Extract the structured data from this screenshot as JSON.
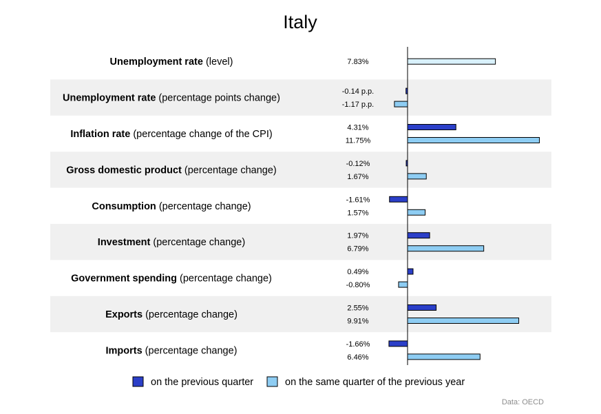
{
  "chart_data": {
    "type": "bar",
    "orientation": "horizontal",
    "title": "Italy",
    "rows": [
      {
        "name": "Unemployment rate",
        "qualifier": "(level)",
        "values": [
          null,
          7.83
        ],
        "labels": [
          "",
          "7.83%"
        ]
      },
      {
        "name": "Unemployment rate",
        "qualifier": "(percentage points change)",
        "values": [
          -0.14,
          -1.17
        ],
        "labels": [
          "-0.14 p.p.",
          "-1.17 p.p."
        ]
      },
      {
        "name": "Inflation rate",
        "qualifier": "(percentage change of the CPI)",
        "values": [
          4.31,
          11.75
        ],
        "labels": [
          "4.31%",
          "11.75%"
        ]
      },
      {
        "name": "Gross domestic product",
        "qualifier": "(percentage change)",
        "values": [
          -0.12,
          1.67
        ],
        "labels": [
          "-0.12%",
          "1.67%"
        ]
      },
      {
        "name": "Consumption",
        "qualifier": "(percentage change)",
        "values": [
          -1.61,
          1.57
        ],
        "labels": [
          "-1.61%",
          "1.57%"
        ]
      },
      {
        "name": "Investment",
        "qualifier": "(percentage change)",
        "values": [
          1.97,
          6.79
        ],
        "labels": [
          "1.97%",
          "6.79%"
        ]
      },
      {
        "name": "Government spending",
        "qualifier": "(percentage change)",
        "values": [
          0.49,
          -0.8
        ],
        "labels": [
          "0.49%",
          "-0.80%"
        ]
      },
      {
        "name": "Exports",
        "qualifier": "(percentage change)",
        "values": [
          2.55,
          9.91
        ],
        "labels": [
          "2.55%",
          "9.91%"
        ]
      },
      {
        "name": "Imports",
        "qualifier": "(percentage change)",
        "values": [
          -1.66,
          6.46
        ],
        "labels": [
          "-1.66%",
          "6.46%"
        ]
      }
    ],
    "series": [
      {
        "name": "on the previous quarter",
        "color": "#2b3fc8"
      },
      {
        "name": "on the same quarter of the previous year",
        "color": "#8ecdf3"
      }
    ],
    "level_bar_color": "#d9f1fc",
    "row_band_color": "#f0f0f0",
    "legend_position": "bottom",
    "source": "Data: OECD"
  }
}
